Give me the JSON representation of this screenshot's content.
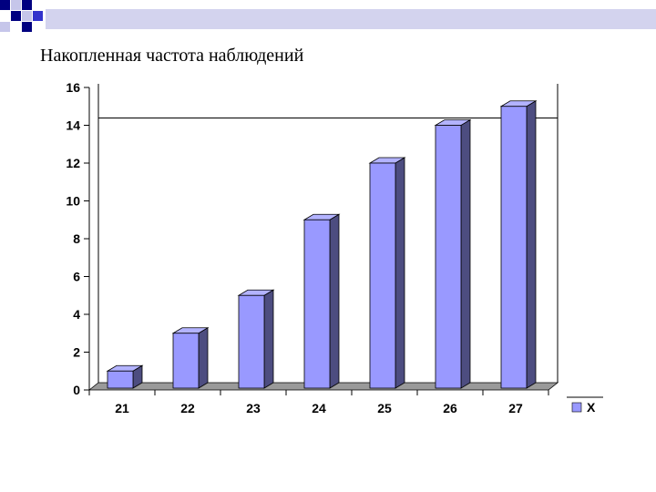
{
  "slide": {
    "title": "Накопленная частота наблюдений"
  },
  "colors": {
    "accent_navy": "#000080",
    "accent_blue": "#3333cc",
    "square_light": "#c6c6ea",
    "band_light": "#d3d3ee",
    "bar_front": "#9999ff",
    "bar_top": "#b3b3ff",
    "bar_side": "#4d4d80",
    "floor": "#9a9a9a"
  },
  "chart_data": {
    "type": "bar",
    "categories": [
      "21",
      "22",
      "23",
      "24",
      "25",
      "26",
      "27"
    ],
    "series": [
      {
        "name": "X",
        "values": [
          1,
          3,
          5,
          9,
          12,
          14,
          15
        ]
      }
    ],
    "title": "",
    "xlabel": "",
    "ylabel": "",
    "ylim": [
      0,
      16
    ],
    "yticks": [
      "0",
      "2",
      "4",
      "6",
      "8",
      "10",
      "12",
      "14",
      "16"
    ],
    "gridlines": [
      14
    ],
    "grid": false,
    "legend": "right",
    "style": "3d-column"
  }
}
